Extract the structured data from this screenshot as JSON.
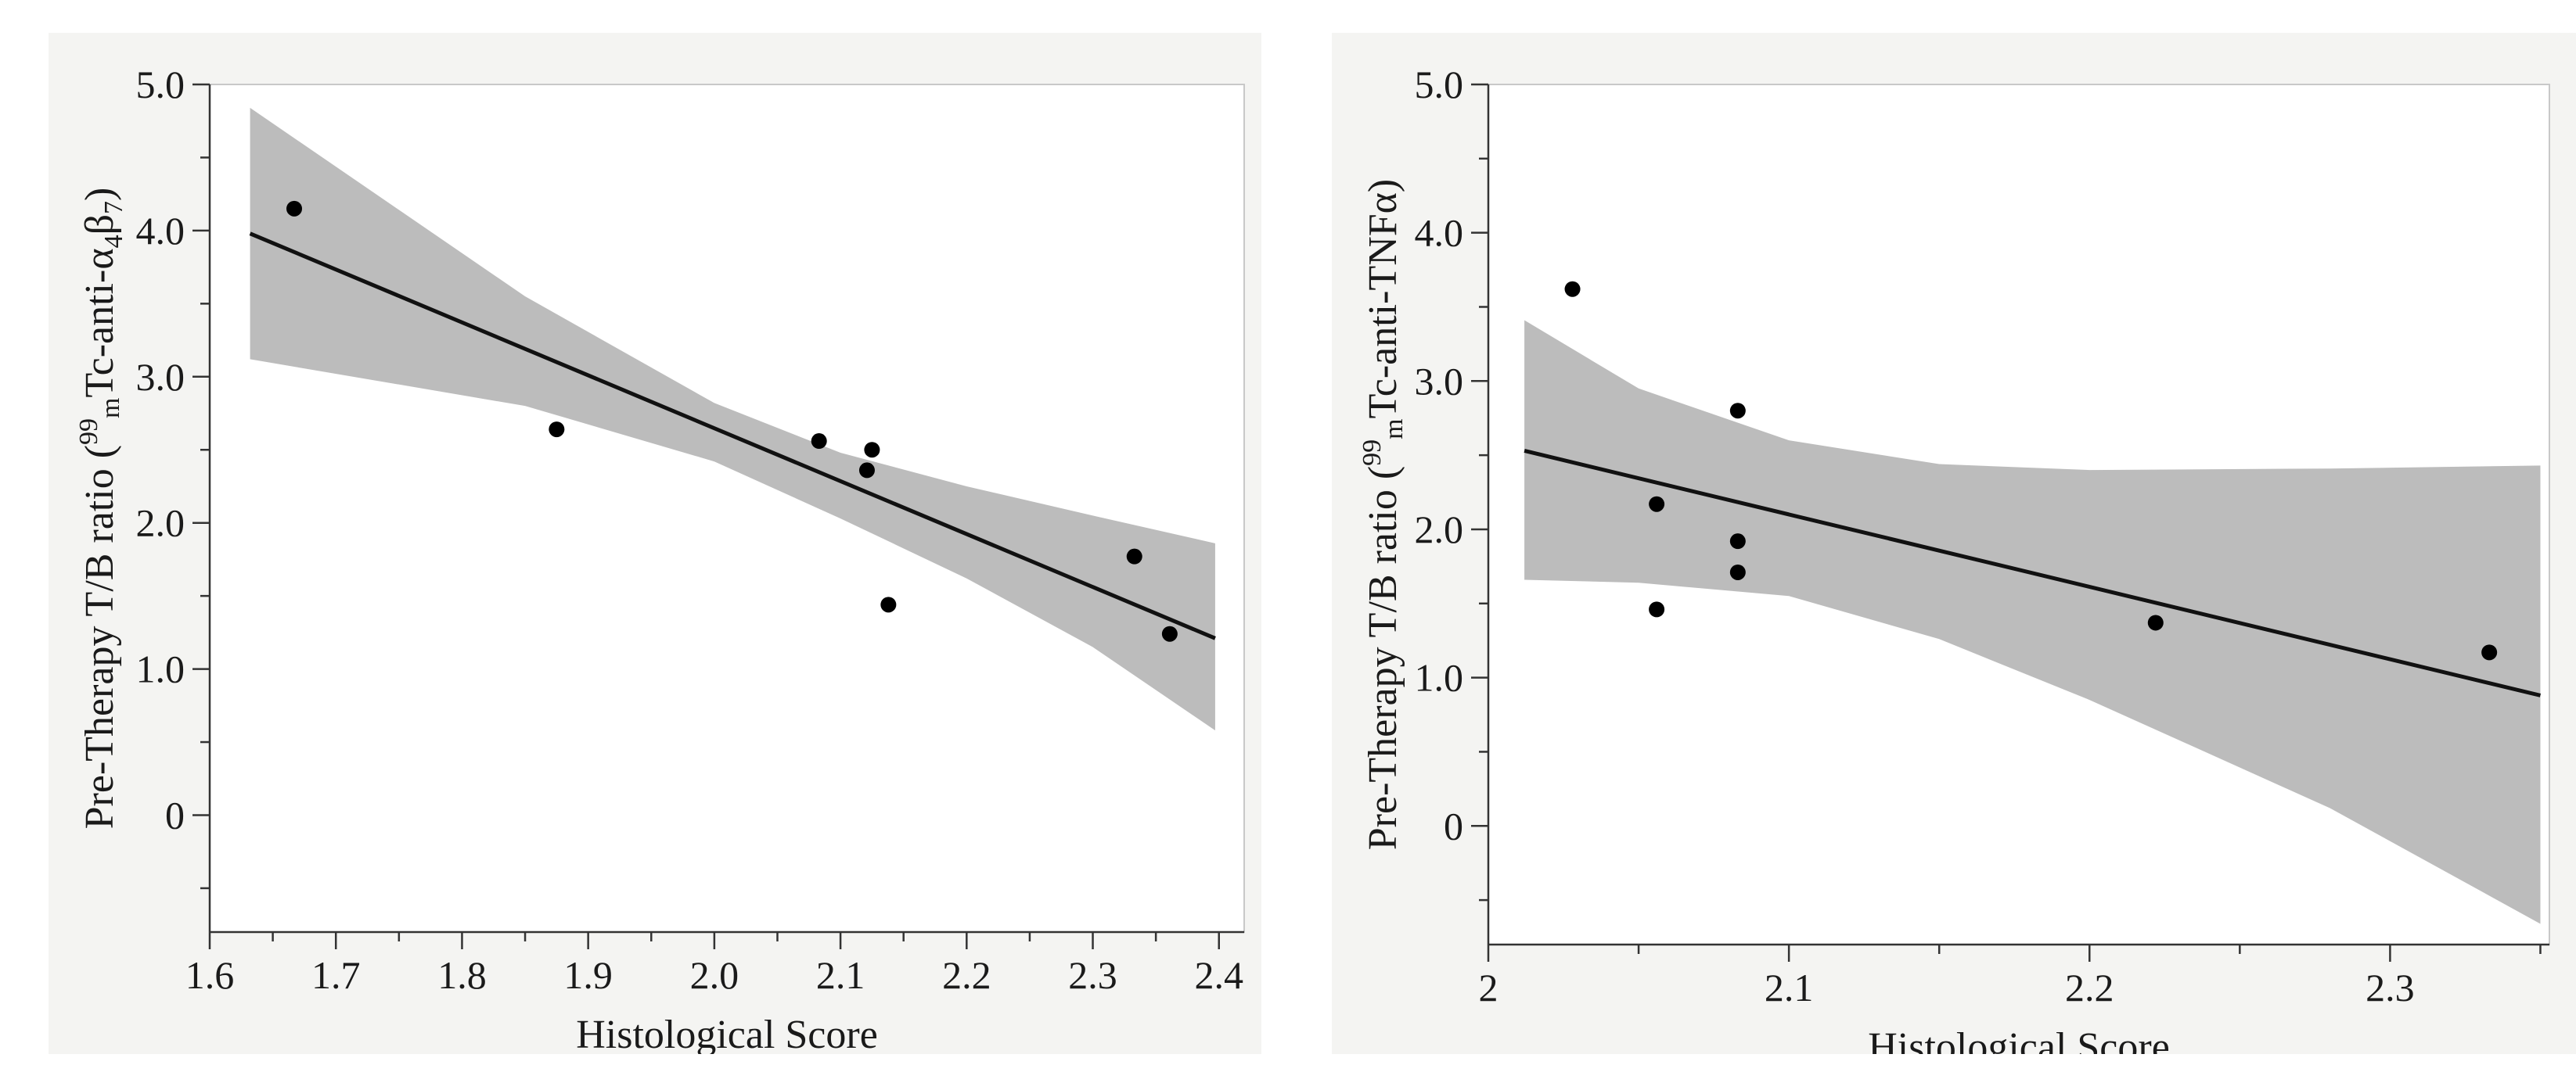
{
  "chart_data": [
    {
      "type": "scatter",
      "xlabel": "Histological Score",
      "ylabel_main": "Pre-Therapy T/B ratio (",
      "ylabel_sup": "99",
      "ylabel_sub": "m",
      "ylabel_rest": "Tc-anti-α",
      "ylabel_sub2": "4",
      "ylabel_mid": "β",
      "ylabel_sub3": "7",
      "ylabel_close": ")",
      "xlim": [
        1.6,
        2.42
      ],
      "ylim": [
        -0.8,
        5.0
      ],
      "xticks": [
        1.6,
        1.7,
        1.8,
        1.9,
        2.0,
        2.1,
        2.2,
        2.3,
        2.4
      ],
      "xtick_labels": [
        "1.6",
        "1.7",
        "1.8",
        "1.9",
        "2.0",
        "2.1",
        "2.2",
        "2.3",
        "2.4"
      ],
      "yticks": [
        0,
        1.0,
        2.0,
        3.0,
        4.0,
        5.0
      ],
      "ytick_labels": [
        "0",
        "1.0",
        "2.0",
        "3.0",
        "4.0",
        "5.0"
      ],
      "points": [
        {
          "x": 1.667,
          "y": 4.15
        },
        {
          "x": 1.875,
          "y": 2.64
        },
        {
          "x": 2.083,
          "y": 2.56
        },
        {
          "x": 2.121,
          "y": 2.36
        },
        {
          "x": 2.125,
          "y": 2.5
        },
        {
          "x": 2.138,
          "y": 1.44
        },
        {
          "x": 2.333,
          "y": 1.77
        },
        {
          "x": 2.361,
          "y": 1.24
        }
      ],
      "fit_line": [
        {
          "x": 1.632,
          "y": 3.98
        },
        {
          "x": 2.397,
          "y": 1.21
        }
      ],
      "ci_upper": [
        {
          "x": 1.632,
          "y": 4.84
        },
        {
          "x": 1.85,
          "y": 3.55
        },
        {
          "x": 2.0,
          "y": 2.82
        },
        {
          "x": 2.1,
          "y": 2.48
        },
        {
          "x": 2.2,
          "y": 2.25
        },
        {
          "x": 2.3,
          "y": 2.05
        },
        {
          "x": 2.397,
          "y": 1.86
        }
      ],
      "ci_lower": [
        {
          "x": 2.397,
          "y": 0.58
        },
        {
          "x": 2.3,
          "y": 1.15
        },
        {
          "x": 2.2,
          "y": 1.62
        },
        {
          "x": 2.1,
          "y": 2.03
        },
        {
          "x": 2.0,
          "y": 2.42
        },
        {
          "x": 1.85,
          "y": 2.8
        },
        {
          "x": 1.632,
          "y": 3.12
        }
      ]
    },
    {
      "type": "scatter",
      "xlabel": "Histological Score",
      "ylabel_main": "Pre-Therapy T/B ratio (",
      "ylabel_sup": "99",
      "ylabel_sub": "m",
      "ylabel_rest": "Tc-anti-TNFα)",
      "xlim": [
        2.0,
        2.353
      ],
      "ylim": [
        -0.8,
        5.0
      ],
      "xticks": [
        2.0,
        2.1,
        2.2,
        2.3
      ],
      "xtick_labels": [
        "2",
        "2.1",
        "2.2",
        "2.3"
      ],
      "yticks": [
        0,
        1.0,
        2.0,
        3.0,
        4.0,
        5.0
      ],
      "ytick_labels": [
        "0",
        "1.0",
        "2.0",
        "3.0",
        "4.0",
        "5.0"
      ],
      "points": [
        {
          "x": 2.028,
          "y": 3.62
        },
        {
          "x": 2.056,
          "y": 2.17
        },
        {
          "x": 2.056,
          "y": 1.46
        },
        {
          "x": 2.083,
          "y": 2.8
        },
        {
          "x": 2.083,
          "y": 1.92
        },
        {
          "x": 2.083,
          "y": 1.71
        },
        {
          "x": 2.222,
          "y": 1.37
        },
        {
          "x": 2.333,
          "y": 1.17
        }
      ],
      "fit_line": [
        {
          "x": 2.012,
          "y": 2.53
        },
        {
          "x": 2.35,
          "y": 0.88
        }
      ],
      "ci_upper": [
        {
          "x": 2.012,
          "y": 3.41
        },
        {
          "x": 2.05,
          "y": 2.95
        },
        {
          "x": 2.1,
          "y": 2.6
        },
        {
          "x": 2.15,
          "y": 2.44
        },
        {
          "x": 2.2,
          "y": 2.4
        },
        {
          "x": 2.28,
          "y": 2.41
        },
        {
          "x": 2.35,
          "y": 2.43
        }
      ],
      "ci_lower": [
        {
          "x": 2.35,
          "y": -0.66
        },
        {
          "x": 2.28,
          "y": 0.12
        },
        {
          "x": 2.2,
          "y": 0.85
        },
        {
          "x": 2.15,
          "y": 1.26
        },
        {
          "x": 2.1,
          "y": 1.55
        },
        {
          "x": 2.05,
          "y": 1.64
        },
        {
          "x": 2.012,
          "y": 1.66
        }
      ]
    }
  ],
  "style": {
    "panel_bg": "#f4f4f2",
    "band_color": "#bcbcbc",
    "line_color": "#111111",
    "point_color": "#000000",
    "axis_color": "#333333"
  }
}
